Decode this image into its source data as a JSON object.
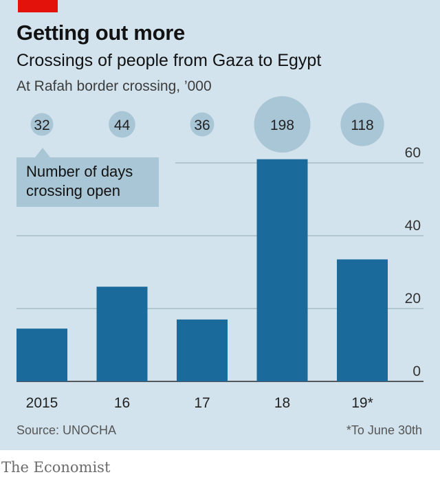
{
  "header": {
    "title": "Getting out more",
    "subtitle": "Crossings of people from Gaza to Egypt",
    "unit": "At Rafah border crossing, ’000"
  },
  "annotation": {
    "line1": "Number of days",
    "line2": "crossing open"
  },
  "footer": {
    "source": "Source: UNOCHA",
    "footnote": "*To June 30th",
    "brand": "The Economist"
  },
  "colors": {
    "background": "#d2e3ed",
    "bar": "#1a6b9b",
    "bubble": "#a8c6d5",
    "gridline": "#9fb4c0",
    "accent": "#e3120b"
  },
  "chart_data": {
    "type": "bar",
    "categories": [
      "2015",
      "16",
      "17",
      "18",
      "19*"
    ],
    "values": [
      14.5,
      26,
      17,
      61,
      33.5
    ],
    "days_open": [
      32,
      44,
      36,
      198,
      118
    ],
    "ylim": [
      0,
      60
    ],
    "yticks": [
      "0",
      "20",
      "40",
      "60"
    ],
    "ytick_values": [
      0,
      20,
      40,
      60
    ],
    "y_axis_side": "right",
    "grid": true,
    "xlabel": "",
    "ylabel": ""
  }
}
